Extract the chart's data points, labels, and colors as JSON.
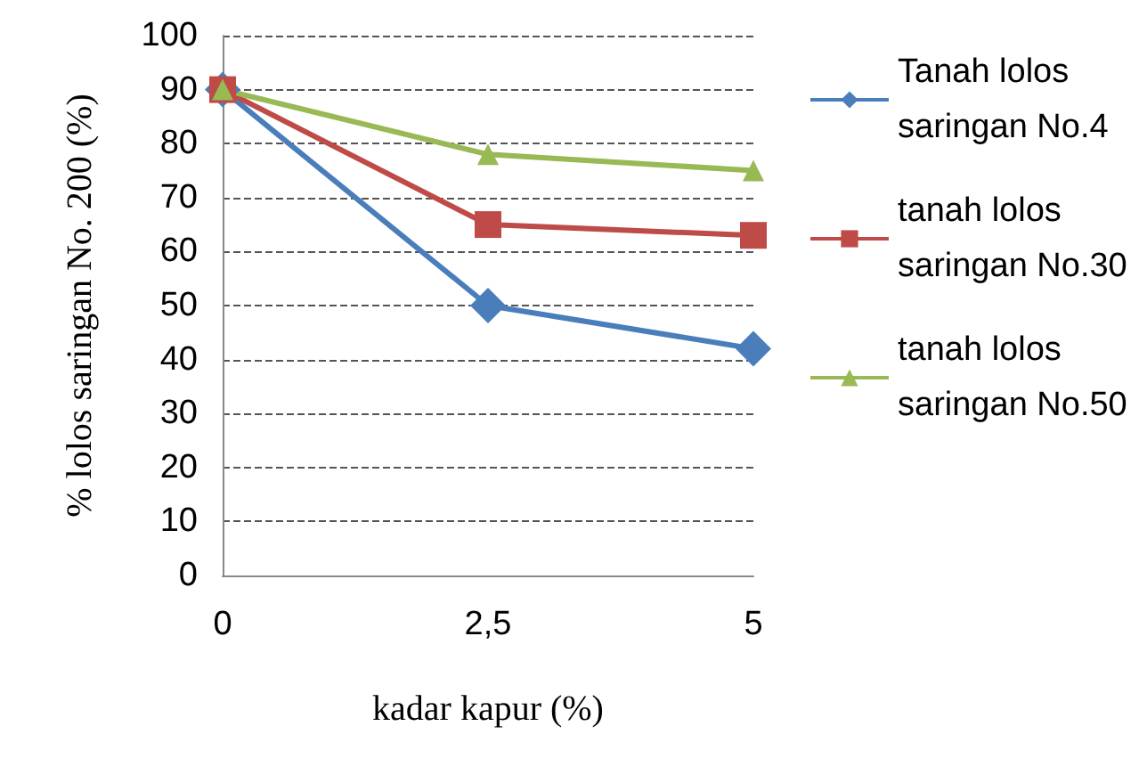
{
  "chart_data": {
    "type": "line",
    "xlabel": "kadar kapur (%)",
    "ylabel": "% lolos saringan No. 200 (%)",
    "categories": [
      "0",
      "2,5",
      "5"
    ],
    "series": [
      {
        "name": "Tanah lolos saringan No.4",
        "color": "#4a7ebb",
        "values": [
          90,
          50,
          42
        ],
        "marker": "diamond"
      },
      {
        "name": "tanah lolos saringan No.30",
        "color": "#be4b48",
        "values": [
          90,
          65,
          63
        ],
        "marker": "square"
      },
      {
        "name": "tanah lolos saringan No.50",
        "color": "#98b954",
        "values": [
          90,
          78,
          75
        ],
        "marker": "triangle"
      }
    ],
    "ylim": [
      0,
      100
    ],
    "yticks": [
      0,
      10,
      20,
      30,
      40,
      50,
      60,
      70,
      80,
      90,
      100
    ],
    "grid": "y",
    "legend": "right",
    "line_style": "solid"
  }
}
